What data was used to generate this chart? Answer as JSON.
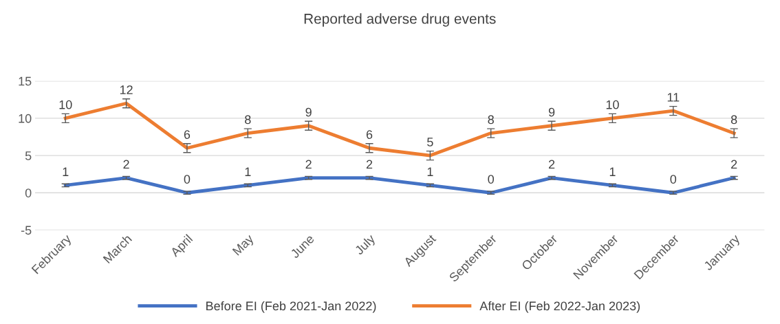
{
  "chart_data": {
    "type": "line",
    "title": "Reported adverse drug events",
    "categories": [
      "February",
      "March",
      "April",
      "May",
      "June",
      "July",
      "August",
      "September",
      "October",
      "November",
      "December",
      "January"
    ],
    "series": [
      {
        "name": "Before EI (Feb 2021-Jan 2022)",
        "color": "#4472c4",
        "values": [
          1,
          2,
          0,
          1,
          2,
          2,
          1,
          0,
          2,
          1,
          0,
          2
        ],
        "errors": [
          0.2,
          0.2,
          0.2,
          0.2,
          0.2,
          0.2,
          0.2,
          0.2,
          0.2,
          0.2,
          0.2,
          0.2
        ]
      },
      {
        "name": "After EI (Feb 2022-Jan 2023)",
        "color": "#ed7d31",
        "values": [
          10,
          12,
          6,
          8,
          9,
          6,
          5,
          8,
          9,
          10,
          11,
          8
        ],
        "errors": [
          0.6,
          0.6,
          0.6,
          0.6,
          0.6,
          0.6,
          0.6,
          0.6,
          0.6,
          0.6,
          0.6,
          0.6
        ]
      }
    ],
    "ylim": [
      -5,
      15
    ],
    "yticks": [
      -5,
      0,
      5,
      10,
      15
    ],
    "grid": "y",
    "legend": "bottom",
    "data_labels": true,
    "marker": "none",
    "line_style": "solid"
  }
}
